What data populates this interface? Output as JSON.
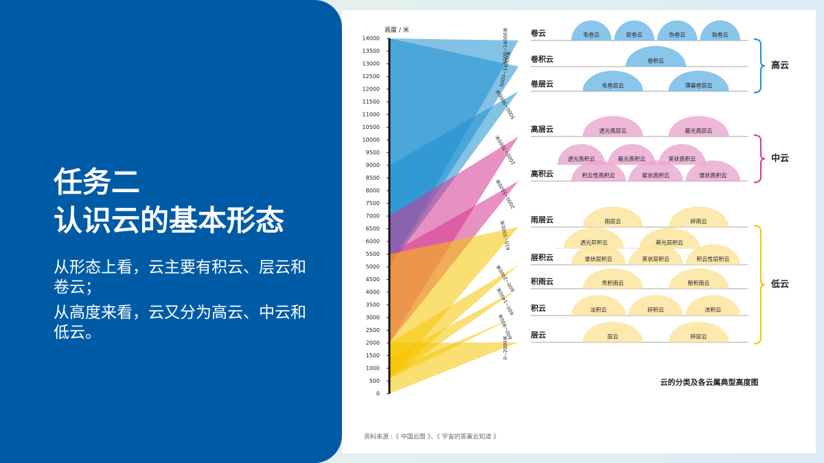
{
  "slide": {
    "title_lines": [
      "任务二",
      "认识云的基本形态"
    ],
    "paragraphs": [
      "从形态上看，云主要有积云、层云和卷云；",
      "从高度来看，云又分为高云、中云和低云。"
    ]
  },
  "chart_data": {
    "type": "fan",
    "y_label": "高度 / 米",
    "ylim": [
      0,
      14000
    ],
    "yticks": [
      0,
      500,
      1000,
      1500,
      2000,
      2500,
      3000,
      3500,
      4000,
      4500,
      5000,
      5500,
      6000,
      6500,
      7000,
      7500,
      8000,
      8500,
      9000,
      9500,
      10000,
      10500,
      11000,
      11500,
      12000,
      12500,
      13000,
      13500,
      14000
    ],
    "groups": [
      {
        "name": "高云",
        "color": "#1e8fd0",
        "rows": [
          {
            "name": "卷云",
            "low": 5000,
            "high": 14000,
            "range_label": "5000~14000米",
            "species": [
              [
                "毛卷云",
                "密卷云",
                "伪卷云",
                "钩卷云"
              ]
            ]
          },
          {
            "name": "卷积云",
            "low": 5000,
            "high": 14000,
            "range_label": "5000~14000米",
            "species": [
              [
                "卷积云"
              ]
            ]
          },
          {
            "name": "卷层云",
            "low": 5000,
            "high": 9000,
            "range_label": "5000~9000米",
            "species": [
              [
                "毛卷层云",
                "薄幕卷层云"
              ]
            ]
          }
        ]
      },
      {
        "name": "中云",
        "color": "#d6358f",
        "rows": [
          {
            "name": "高层云",
            "low": 2000,
            "high": 7000,
            "range_label": "2000~7000米",
            "species": [
              [
                "透光高层云",
                "蔽光高层云"
              ]
            ]
          },
          {
            "name": "高积云",
            "low": 2000,
            "high": 5500,
            "range_label": "2000~5500米",
            "species": [
              [
                "透光高积云",
                "蔽光高积云",
                "荚状高积云"
              ],
              [
                "积云性高积云",
                "絮状高积云",
                "堡状高积云"
              ]
            ]
          }
        ]
      },
      {
        "name": "低云",
        "color": "#f5c400",
        "rows": [
          {
            "name": "雨层云",
            "low": 610,
            "high": 5500,
            "range_label": "610~5500米",
            "species": [
              [
                "雨层云",
                "碎雨云"
              ]
            ]
          },
          {
            "name": "层积云",
            "low": 600,
            "high": 2000,
            "range_label": "600~2000米",
            "species": [
              [
                "透光层积云",
                "蔽光层积云"
              ],
              [
                "堡状层积云",
                "荚状层积云",
                "积云性层积云"
              ]
            ]
          },
          {
            "name": "积雨云",
            "low": 600,
            "high": 1400,
            "range_label": "600~1400米",
            "species": [
              [
                "秃积雨云",
                "鬃积雨云"
              ]
            ]
          },
          {
            "name": "积云",
            "low": 600,
            "high": 900,
            "range_label": "600~900米",
            "species": [
              [
                "淡积云",
                "碎积云",
                "浓积云"
              ]
            ]
          },
          {
            "name": "层云",
            "low": 0,
            "high": 2000,
            "range_label": "0~2000米",
            "species": [
              [
                "层云",
                "碎层云"
              ]
            ]
          }
        ]
      }
    ],
    "caption": "云的分类及各云属典型高度图",
    "source": "资料来源 :《 中国云图 》、《 宇宙的答案云知道 》"
  }
}
